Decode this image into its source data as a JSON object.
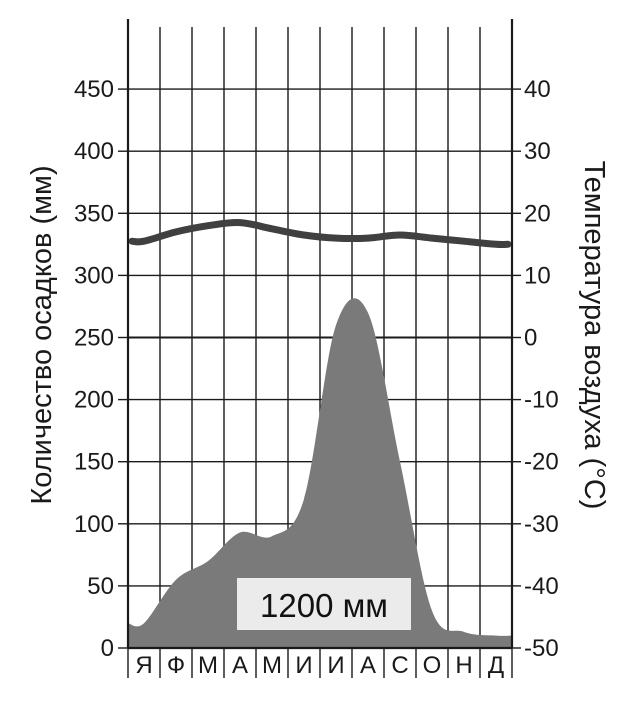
{
  "chart_data": {
    "type": "area",
    "months": [
      "Я",
      "Ф",
      "М",
      "А",
      "М",
      "И",
      "И",
      "А",
      "С",
      "О",
      "Н",
      "Д"
    ],
    "precipitation": {
      "axis_label": "Количество осадков  (мм)",
      "ylim": [
        0,
        500
      ],
      "ticks": [
        0,
        50,
        100,
        150,
        200,
        250,
        300,
        350,
        400,
        450
      ],
      "values": [
        20,
        55,
        70,
        93,
        90,
        120,
        260,
        270,
        150,
        30,
        13,
        10
      ]
    },
    "temperature": {
      "axis_label": "Температура воздуха  (°С)",
      "ylim": [
        -50,
        50
      ],
      "ticks": [
        -50,
        -40,
        -30,
        -20,
        -10,
        0,
        10,
        20,
        30,
        40
      ],
      "values": [
        15.5,
        17,
        18,
        18.5,
        17.5,
        16.5,
        16,
        16,
        16.5,
        16,
        15.5,
        15
      ]
    },
    "total_label": "1200 мм",
    "grid": true,
    "colors": {
      "precipitation_fill": "#7a7a7a",
      "temperature_line": "#404040",
      "grid": "#1a1a1a"
    }
  }
}
